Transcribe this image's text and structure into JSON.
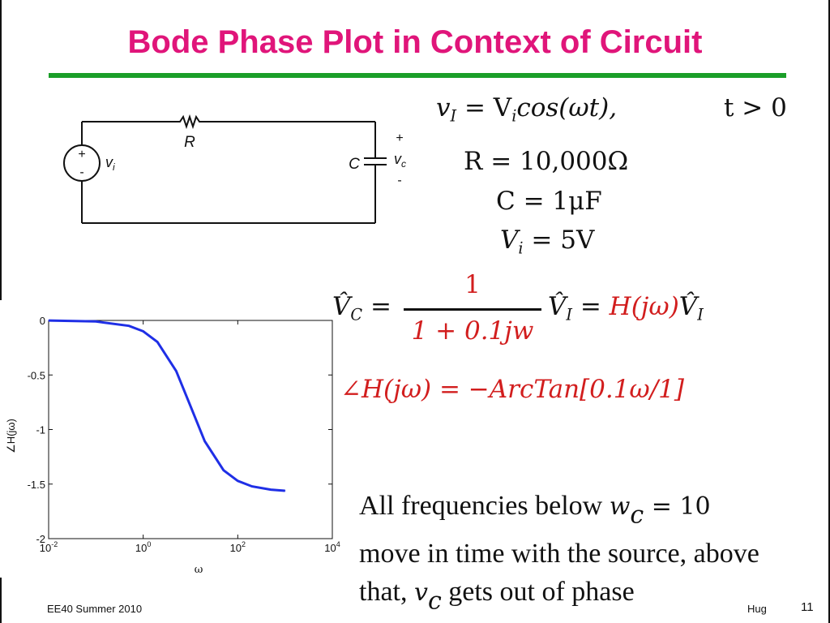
{
  "slide": {
    "title": "Bode Phase Plot in Context of Circuit",
    "footer_left": "EE40 Summer 2010",
    "footer_author": "Hug",
    "page_number": "11"
  },
  "circuit": {
    "source_plus": "+",
    "source_minus": "-",
    "source_label": "v",
    "source_label_sub": "i",
    "resistor_label": "R",
    "capacitor_label": "C",
    "output_plus": "+",
    "output_label": "v",
    "output_label_sub": "c",
    "output_minus": "-"
  },
  "equations": {
    "eq1_lhs": "v",
    "eq1_lhs_sub": "I",
    "eq1_rhs_a": " = V",
    "eq1_rhs_sub": "i",
    "eq1_rhs_b": "cos(ωt),",
    "eq1_cond": "t > 0",
    "r_value": "R = 10,000Ω",
    "c_value": "C = 1μF",
    "vi_value_a": "V",
    "vi_value_sub": "i",
    "vi_value_b": " = 5V",
    "transfer_lhs": "V̂",
    "transfer_lhs_sub": "C",
    "transfer_eq": " =",
    "transfer_num": "1",
    "transfer_den": "1 + 0.1jw",
    "transfer_mid": "V̂",
    "transfer_mid_sub": "I",
    "transfer_eq2": " = ",
    "transfer_h": "H(jω)",
    "transfer_end": "V̂",
    "transfer_end_sub": "I",
    "phase_lhs": "∠H(jω)",
    "phase_rhs": " = −ArcTan[0.1ω/1]"
  },
  "paragraph": {
    "part1": "All frequencies below ",
    "wc": "w",
    "wc_sub": "c",
    "part2": " = 10",
    "line2": "move in time with the source, above",
    "part3": "that, ",
    "vc": "v",
    "vc_sub": "c",
    "part4": " gets out of phase"
  },
  "chart_data": {
    "type": "line",
    "xscale": "log",
    "xlim": [
      0.01,
      10000
    ],
    "ylim": [
      -2,
      0
    ],
    "xlabel": "ω",
    "ylabel": "∠H(jω)",
    "x_ticks": [
      {
        "base": "10",
        "exp": "-2",
        "value": 0.01
      },
      {
        "base": "10",
        "exp": "0",
        "value": 1
      },
      {
        "base": "10",
        "exp": "2",
        "value": 100
      },
      {
        "base": "10",
        "exp": "4",
        "value": 10000
      }
    ],
    "y_ticks": [
      {
        "label": "0",
        "value": 0
      },
      {
        "label": "-0.5",
        "value": -0.5
      },
      {
        "label": "-1",
        "value": -1
      },
      {
        "label": "-1.5",
        "value": -1.5
      },
      {
        "label": "-2",
        "value": -2
      }
    ],
    "series": [
      {
        "color": "#1f2fe6",
        "x": [
          0.01,
          0.1,
          0.5,
          1,
          2,
          5,
          10,
          20,
          50,
          100,
          200,
          500,
          1000
        ],
        "y": [
          -0.001,
          -0.01,
          -0.05,
          -0.0997,
          -0.197,
          -0.464,
          -0.785,
          -1.107,
          -1.373,
          -1.471,
          -1.521,
          -1.551,
          -1.561
        ]
      }
    ]
  }
}
